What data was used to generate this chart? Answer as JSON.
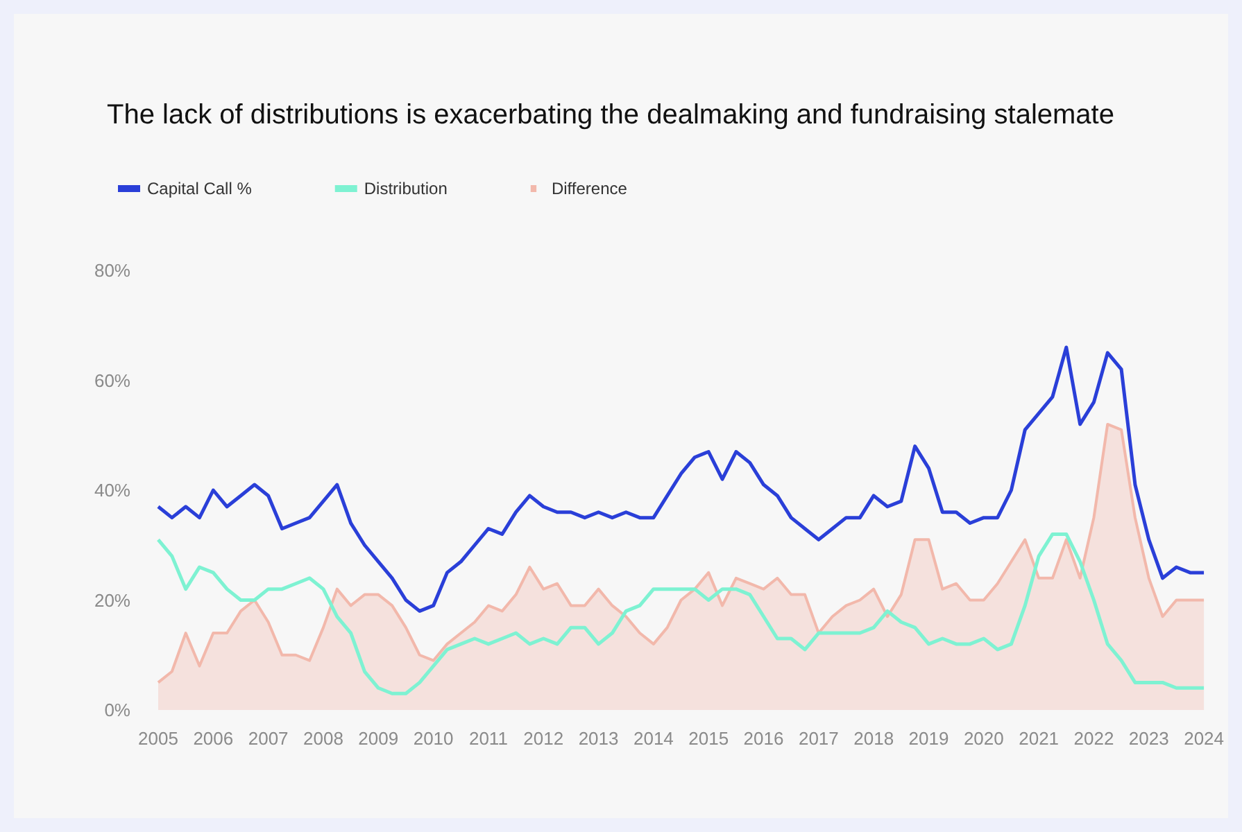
{
  "chart_data": {
    "type": "line",
    "title": "The lack of distributions is exacerbating the dealmaking and fundraising stalemate",
    "legend": "top left",
    "grid": false,
    "marker": "none",
    "line_style": "solid",
    "xlim": [
      2005,
      2024
    ],
    "xticks": [
      2005,
      2006,
      2007,
      2008,
      2009,
      2010,
      2011,
      2012,
      2013,
      2014,
      2015,
      2016,
      2017,
      2018,
      2019,
      2020,
      2021,
      2022,
      2023,
      2024
    ],
    "ylim": [
      0,
      80
    ],
    "yticks": [
      {
        "value": 0,
        "label": "0%"
      },
      {
        "value": 20,
        "label": "20%"
      },
      {
        "value": 40,
        "label": "40%"
      },
      {
        "value": 60,
        "label": "60%"
      },
      {
        "value": 80,
        "label": "80%"
      }
    ],
    "x": [
      2005,
      2005.25,
      2005.5,
      2005.75,
      2006,
      2006.25,
      2006.5,
      2006.75,
      2007,
      2007.25,
      2007.5,
      2007.75,
      2008,
      2008.25,
      2008.5,
      2008.75,
      2009,
      2009.25,
      2009.5,
      2009.75,
      2010,
      2010.25,
      2010.5,
      2010.75,
      2011,
      2011.25,
      2011.5,
      2011.75,
      2012,
      2012.25,
      2012.5,
      2012.75,
      2013,
      2013.25,
      2013.5,
      2013.75,
      2014,
      2014.25,
      2014.5,
      2014.75,
      2015,
      2015.25,
      2015.5,
      2015.75,
      2016,
      2016.25,
      2016.5,
      2016.75,
      2017,
      2017.25,
      2017.5,
      2017.75,
      2018,
      2018.25,
      2018.5,
      2018.75,
      2019,
      2019.25,
      2019.5,
      2019.75,
      2020,
      2020.25,
      2020.5,
      2020.75,
      2021,
      2021.25,
      2021.5,
      2021.75,
      2022,
      2022.25,
      2022.5,
      2022.75,
      2023,
      2023.25,
      2023.5,
      2023.75,
      2024
    ],
    "series": [
      {
        "name": "Difference",
        "type": "area",
        "color": "#f2b8ab",
        "values": [
          5,
          7,
          14,
          8,
          14,
          14,
          18,
          20,
          16,
          10,
          10,
          9,
          15,
          22,
          19,
          21,
          21,
          19,
          15,
          10,
          9,
          12,
          14,
          16,
          19,
          18,
          21,
          26,
          22,
          23,
          19,
          19,
          22,
          19,
          17,
          14,
          12,
          15,
          20,
          22,
          25,
          19,
          24,
          23,
          22,
          24,
          21,
          21,
          14,
          17,
          19,
          20,
          22,
          17,
          21,
          31,
          31,
          22,
          23,
          20,
          20,
          23,
          27,
          31,
          24,
          24,
          31,
          24,
          35,
          52,
          51,
          35,
          24,
          17,
          20,
          20,
          20
        ]
      },
      {
        "name": "Distribution",
        "color": "#7ef2d2",
        "values": [
          31,
          28,
          22,
          26,
          25,
          22,
          20,
          20,
          22,
          22,
          23,
          24,
          22,
          17,
          14,
          7,
          4,
          3,
          3,
          5,
          8,
          11,
          12,
          13,
          12,
          13,
          14,
          12,
          13,
          12,
          15,
          15,
          12,
          14,
          18,
          19,
          22,
          22,
          22,
          22,
          20,
          22,
          22,
          21,
          17,
          13,
          13,
          11,
          14,
          14,
          14,
          14,
          15,
          18,
          16,
          15,
          12,
          13,
          12,
          12,
          13,
          11,
          12,
          19,
          28,
          32,
          32,
          27,
          20,
          12,
          9,
          5,
          5,
          5,
          4,
          4,
          4
        ]
      },
      {
        "name": "Capital Call %",
        "color": "#2a3fd8",
        "values": [
          37,
          35,
          37,
          35,
          40,
          37,
          39,
          41,
          39,
          33,
          34,
          35,
          38,
          41,
          34,
          30,
          27,
          24,
          20,
          18,
          19,
          25,
          27,
          30,
          33,
          32,
          36,
          39,
          37,
          36,
          36,
          35,
          36,
          35,
          36,
          35,
          35,
          39,
          43,
          46,
          47,
          42,
          47,
          45,
          41,
          39,
          35,
          33,
          31,
          33,
          35,
          35,
          39,
          37,
          38,
          48,
          44,
          36,
          36,
          34,
          35,
          35,
          40,
          51,
          54,
          57,
          66,
          52,
          56,
          65,
          62,
          41,
          31,
          24,
          26,
          25,
          25
        ]
      }
    ]
  }
}
